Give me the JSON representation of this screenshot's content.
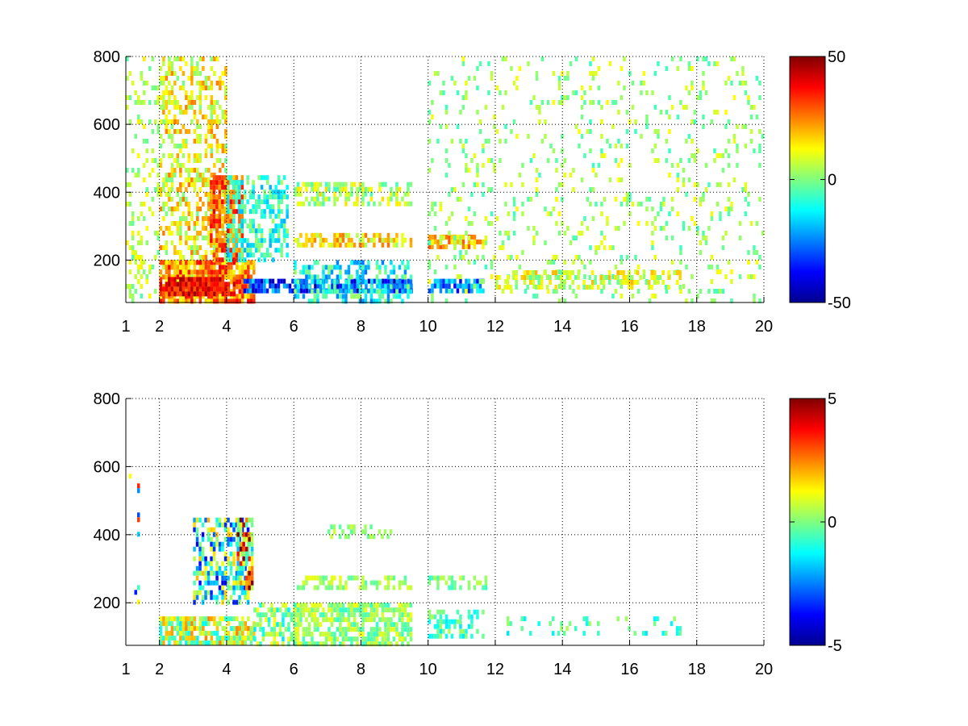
{
  "chart_data": [
    {
      "type": "heatmap",
      "title": "",
      "xlabel": "",
      "ylabel": "",
      "xlim": [
        1,
        20
      ],
      "ylim": [
        75,
        800
      ],
      "x_ticks": [
        1,
        2,
        4,
        6,
        8,
        10,
        12,
        14,
        16,
        18,
        20
      ],
      "y_ticks": [
        200,
        400,
        600,
        800
      ],
      "grid": true,
      "grid_x": [
        2,
        4,
        6,
        8,
        10,
        12,
        14,
        16,
        18,
        20
      ],
      "grid_y": [
        200,
        400,
        600,
        800
      ],
      "colormap": "jet",
      "clim": [
        -50,
        50
      ],
      "colorbar_ticks": [
        -50,
        0,
        50
      ],
      "regions": [
        {
          "x": [
            1.0,
            2.0
          ],
          "y": [
            75,
            800
          ],
          "v": 5,
          "density": 0.25,
          "spread": 10
        },
        {
          "x": [
            2.0,
            4.0
          ],
          "y": [
            75,
            800
          ],
          "v": 12,
          "density": 0.45,
          "spread": 14
        },
        {
          "x": [
            2.0,
            4.8
          ],
          "y": [
            75,
            200
          ],
          "v": 25,
          "density": 0.85,
          "spread": 15
        },
        {
          "x": [
            2.0,
            4.2
          ],
          "y": [
            100,
            150
          ],
          "v": 38,
          "density": 0.9,
          "spread": 10
        },
        {
          "x": [
            3.5,
            4.5
          ],
          "y": [
            200,
            450
          ],
          "v": 28,
          "density": 0.75,
          "spread": 12
        },
        {
          "x": [
            4.0,
            5.8
          ],
          "y": [
            200,
            450
          ],
          "v": -8,
          "density": 0.55,
          "spread": 12
        },
        {
          "x": [
            4.5,
            9.5
          ],
          "y": [
            105,
            145
          ],
          "v": -30,
          "density": 0.85,
          "spread": 18
        },
        {
          "x": [
            6.0,
            9.5
          ],
          "y": [
            75,
            200
          ],
          "v": -12,
          "density": 0.45,
          "spread": 15
        },
        {
          "x": [
            6.0,
            9.5
          ],
          "y": [
            240,
            280
          ],
          "v": 15,
          "density": 0.65,
          "spread": 12
        },
        {
          "x": [
            6.0,
            9.5
          ],
          "y": [
            370,
            430
          ],
          "v": 5,
          "density": 0.55,
          "spread": 12
        },
        {
          "x": [
            10.0,
            11.6
          ],
          "y": [
            105,
            145
          ],
          "v": -25,
          "density": 0.8,
          "spread": 15
        },
        {
          "x": [
            10.0,
            11.6
          ],
          "y": [
            245,
            275
          ],
          "v": 22,
          "density": 0.7,
          "spread": 10
        },
        {
          "x": [
            10.0,
            20.0
          ],
          "y": [
            75,
            800
          ],
          "v": 3,
          "density": 0.12,
          "spread": 10
        },
        {
          "x": [
            12.0,
            17.5
          ],
          "y": [
            120,
            170
          ],
          "v": 8,
          "density": 0.45,
          "spread": 12
        }
      ]
    },
    {
      "type": "heatmap",
      "title": "",
      "xlabel": "",
      "ylabel": "",
      "xlim": [
        1,
        20
      ],
      "ylim": [
        75,
        800
      ],
      "x_ticks": [
        1,
        2,
        4,
        6,
        8,
        10,
        12,
        14,
        16,
        18,
        20
      ],
      "y_ticks": [
        200,
        400,
        600,
        800
      ],
      "grid": true,
      "grid_x": [
        2,
        4,
        6,
        8,
        10,
        12,
        14,
        16,
        18,
        20
      ],
      "grid_y": [
        200,
        400,
        600,
        800
      ],
      "colormap": "jet",
      "clim": [
        -5,
        5
      ],
      "colorbar_ticks": [
        -5,
        0,
        5
      ],
      "regions": [
        {
          "x": [
            1.0,
            1.5
          ],
          "y": [
            100,
            650
          ],
          "v": 0,
          "density": 0.05,
          "spread": 4
        },
        {
          "x": [
            2.0,
            4.8
          ],
          "y": [
            75,
            160
          ],
          "v": 0.5,
          "density": 0.8,
          "spread": 2
        },
        {
          "x": [
            3.0,
            4.6
          ],
          "y": [
            200,
            450
          ],
          "v": -1,
          "density": 0.55,
          "spread": 3
        },
        {
          "x": [
            4.3,
            4.8
          ],
          "y": [
            250,
            450
          ],
          "v": 2,
          "density": 0.8,
          "spread": 4
        },
        {
          "x": [
            4.8,
            6.0
          ],
          "y": [
            75,
            200
          ],
          "v": 0,
          "density": 0.55,
          "spread": 1.5
        },
        {
          "x": [
            6.0,
            9.5
          ],
          "y": [
            75,
            200
          ],
          "v": 0.2,
          "density": 0.75,
          "spread": 1
        },
        {
          "x": [
            6.0,
            9.5
          ],
          "y": [
            250,
            280
          ],
          "v": 0.3,
          "density": 0.5,
          "spread": 0.8
        },
        {
          "x": [
            7.0,
            9.0
          ],
          "y": [
            400,
            430
          ],
          "v": 0.2,
          "density": 0.35,
          "spread": 0.6
        },
        {
          "x": [
            10.0,
            11.6
          ],
          "y": [
            100,
            180
          ],
          "v": -0.5,
          "density": 0.55,
          "spread": 1
        },
        {
          "x": [
            10.0,
            11.8
          ],
          "y": [
            250,
            280
          ],
          "v": 0,
          "density": 0.45,
          "spread": 0.8
        },
        {
          "x": [
            12.0,
            17.5
          ],
          "y": [
            110,
            160
          ],
          "v": -0.5,
          "density": 0.18,
          "spread": 1
        }
      ]
    }
  ]
}
